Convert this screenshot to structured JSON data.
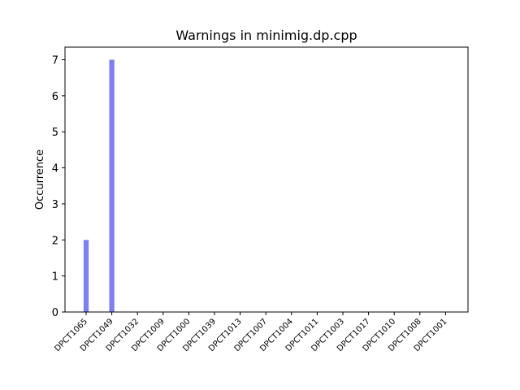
{
  "chart_data": {
    "type": "bar",
    "title": "Warnings in minimig.dp.cpp",
    "xlabel": "",
    "ylabel": "Occurrence",
    "categories": [
      "DPCT1065",
      "DPCT1049",
      "DPCT1032",
      "DPCT1009",
      "DPCT1000",
      "DPCT1039",
      "DPCT1013",
      "DPCT1007",
      "DPCT1004",
      "DPCT1011",
      "DPCT1003",
      "DPCT1017",
      "DPCT1010",
      "DPCT1008",
      "DPCT1001"
    ],
    "values": [
      2,
      7,
      0,
      0,
      0,
      0,
      0,
      0,
      0,
      0,
      0,
      0,
      0,
      0,
      0
    ],
    "ylim": [
      0,
      7.35
    ],
    "yticks": [
      0,
      1,
      2,
      3,
      4,
      5,
      6,
      7
    ],
    "bar_color": "#7f7ff0",
    "grid": false
  }
}
